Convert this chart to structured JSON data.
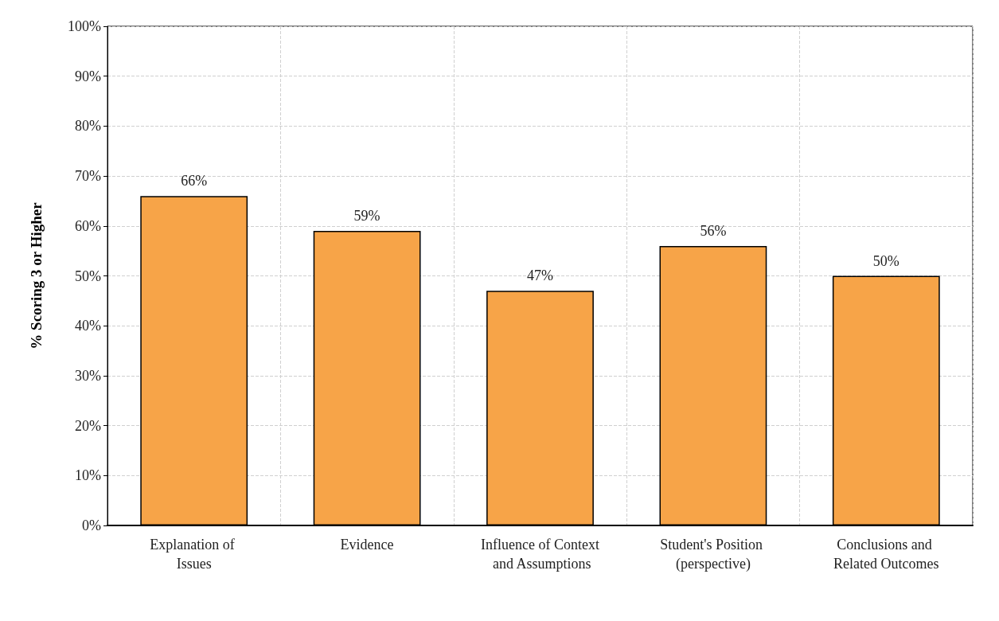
{
  "chart_data": {
    "type": "bar",
    "ylabel": "% Scoring 3 or Higher",
    "categories": [
      "Explanation of Issues",
      "Evidence",
      "Influence of Context and Assumptions",
      "Student's Position (perspective)",
      "Conclusions and Related Outcomes"
    ],
    "values": [
      66,
      59,
      47,
      56,
      50
    ],
    "color": "#f7a448",
    "value_labels": [
      "66%",
      "59%",
      "47%",
      "56%",
      "50%"
    ],
    "ylim": [
      0,
      100
    ],
    "yticks": [
      {
        "value": 0,
        "label": "0%"
      },
      {
        "value": 10,
        "label": "10%"
      },
      {
        "value": 20,
        "label": "20%"
      },
      {
        "value": 30,
        "label": "30%"
      },
      {
        "value": 40,
        "label": "40%"
      },
      {
        "value": 50,
        "label": "50%"
      },
      {
        "value": 60,
        "label": "60%"
      },
      {
        "value": 70,
        "label": "70%"
      },
      {
        "value": 80,
        "label": "80%"
      },
      {
        "value": 90,
        "label": "90%"
      },
      {
        "value": 100,
        "label": "100%"
      }
    ],
    "grid": true
  }
}
